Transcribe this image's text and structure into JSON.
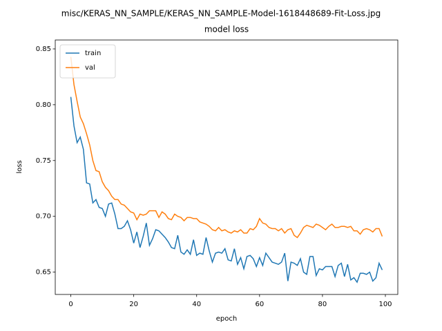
{
  "chart_data": {
    "type": "line",
    "suptitle": "misc/KERAS_NN_SAMPLE/KERAS_NN_SAMPLE-Model-1618448689-Fit-Loss.jpg",
    "title": "model loss",
    "xlabel": "epoch",
    "ylabel": "loss",
    "x": [
      0,
      1,
      2,
      3,
      4,
      5,
      6,
      7,
      8,
      9,
      10,
      11,
      12,
      13,
      14,
      15,
      16,
      17,
      18,
      19,
      20,
      21,
      22,
      23,
      24,
      25,
      26,
      27,
      28,
      29,
      30,
      31,
      32,
      33,
      34,
      35,
      36,
      37,
      38,
      39,
      40,
      41,
      42,
      43,
      44,
      45,
      46,
      47,
      48,
      49,
      50,
      51,
      52,
      53,
      54,
      55,
      56,
      57,
      58,
      59,
      60,
      61,
      62,
      63,
      64,
      65,
      66,
      67,
      68,
      69,
      70,
      71,
      72,
      73,
      74,
      75,
      76,
      77,
      78,
      79,
      80,
      81,
      82,
      83,
      84,
      85,
      86,
      87,
      88,
      89,
      90,
      91,
      92,
      93,
      94,
      95,
      96,
      97,
      98,
      99
    ],
    "series": [
      {
        "name": "train",
        "color": "#1f77b4",
        "values": [
          0.807,
          0.781,
          0.766,
          0.771,
          0.76,
          0.73,
          0.729,
          0.712,
          0.715,
          0.708,
          0.707,
          0.7,
          0.711,
          0.712,
          0.702,
          0.689,
          0.689,
          0.691,
          0.696,
          0.688,
          0.676,
          0.686,
          0.672,
          0.682,
          0.694,
          0.674,
          0.68,
          0.688,
          0.687,
          0.684,
          0.681,
          0.677,
          0.672,
          0.671,
          0.683,
          0.668,
          0.666,
          0.67,
          0.666,
          0.679,
          0.665,
          0.667,
          0.666,
          0.681,
          0.669,
          0.659,
          0.667,
          0.668,
          0.667,
          0.671,
          0.661,
          0.66,
          0.671,
          0.657,
          0.663,
          0.653,
          0.664,
          0.665,
          0.662,
          0.655,
          0.663,
          0.656,
          0.667,
          0.663,
          0.659,
          0.658,
          0.657,
          0.659,
          0.667,
          0.642,
          0.659,
          0.658,
          0.656,
          0.662,
          0.65,
          0.648,
          0.664,
          0.664,
          0.647,
          0.653,
          0.652,
          0.655,
          0.655,
          0.655,
          0.646,
          0.656,
          0.658,
          0.646,
          0.657,
          0.643,
          0.645,
          0.641,
          0.649,
          0.649,
          0.648,
          0.65,
          0.642,
          0.645,
          0.658,
          0.652
        ]
      },
      {
        "name": "val",
        "color": "#ff7f0e",
        "values": [
          0.843,
          0.818,
          0.803,
          0.789,
          0.783,
          0.774,
          0.764,
          0.75,
          0.741,
          0.74,
          0.731,
          0.726,
          0.723,
          0.718,
          0.715,
          0.715,
          0.711,
          0.71,
          0.707,
          0.704,
          0.703,
          0.697,
          0.702,
          0.701,
          0.702,
          0.705,
          0.705,
          0.705,
          0.699,
          0.704,
          0.702,
          0.698,
          0.697,
          0.702,
          0.7,
          0.699,
          0.696,
          0.699,
          0.699,
          0.698,
          0.698,
          0.695,
          0.694,
          0.693,
          0.691,
          0.688,
          0.687,
          0.69,
          0.687,
          0.688,
          0.686,
          0.685,
          0.687,
          0.686,
          0.688,
          0.685,
          0.685,
          0.689,
          0.688,
          0.691,
          0.698,
          0.694,
          0.693,
          0.69,
          0.689,
          0.689,
          0.687,
          0.689,
          0.685,
          0.688,
          0.689,
          0.683,
          0.681,
          0.685,
          0.69,
          0.692,
          0.691,
          0.69,
          0.693,
          0.692,
          0.69,
          0.688,
          0.691,
          0.693,
          0.69,
          0.69,
          0.691,
          0.691,
          0.69,
          0.691,
          0.687,
          0.687,
          0.684,
          0.688,
          0.689,
          0.688,
          0.686,
          0.689,
          0.689,
          0.682
        ]
      }
    ],
    "xlim": [
      -4.95,
      103.95
    ],
    "xticks": [
      0,
      20,
      40,
      60,
      80,
      100
    ],
    "ylim": [
      0.63,
      0.858
    ],
    "yticks": [
      0.65,
      {
        "value": 0.7,
        "label": "0.70"
      },
      0.75,
      {
        "value": 0.8,
        "label": "0.80"
      },
      0.85
    ],
    "legend": "upper left"
  }
}
